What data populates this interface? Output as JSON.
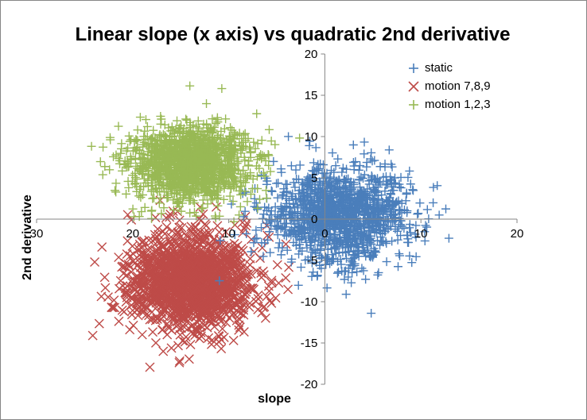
{
  "chart_data": {
    "type": "scatter",
    "title": "Linear slope (x axis) vs quadratic 2nd derivative",
    "xlabel": "slope",
    "ylabel": "2nd derivative",
    "xlim": [
      -30,
      20
    ],
    "ylim": [
      -20,
      20
    ],
    "x_ticks": [
      "30",
      "20",
      "10",
      "0",
      "10",
      "20"
    ],
    "x_tick_values": [
      -30,
      -20,
      -10,
      0,
      10,
      20
    ],
    "y_ticks": [
      "20",
      "15",
      "10",
      "5",
      "0",
      "-5",
      "-10",
      "-15",
      "-20"
    ],
    "y_tick_values": [
      20,
      15,
      10,
      5,
      0,
      -5,
      -10,
      -15,
      -20
    ],
    "grid": false,
    "legend_position": "top-right",
    "series": [
      {
        "name": "static",
        "marker": "plus",
        "color": "#4a7ebb",
        "center": [
          1.5,
          0.5
        ],
        "spread": [
          3.5,
          2.8
        ],
        "count": 1400
      },
      {
        "name": "motion 7,8,9",
        "marker": "cross",
        "color": "#be4b48",
        "center": [
          -14,
          -7.5
        ],
        "spread": [
          3.2,
          2.8
        ],
        "count": 1600
      },
      {
        "name": "motion 1,2,3",
        "marker": "plus",
        "color": "#98b954",
        "center": [
          -14,
          6.8
        ],
        "spread": [
          3.0,
          2.2
        ],
        "count": 1500
      }
    ]
  }
}
